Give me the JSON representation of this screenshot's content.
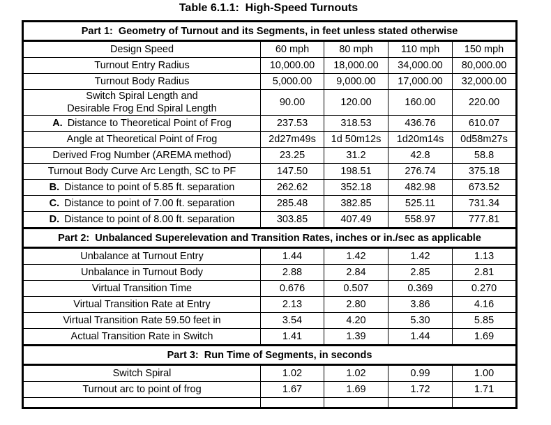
{
  "title": "Table 6.1.1:  High-Speed Turnouts",
  "table": {
    "parts": [
      {
        "header": "Part 1:  Geometry of Turnout and its Segments, in feet unless stated otherwise",
        "rows": [
          {
            "prefix": "",
            "label": "Design Speed",
            "values": [
              "60 mph",
              "80 mph",
              "110 mph",
              "150 mph"
            ]
          },
          {
            "prefix": "",
            "label": "Turnout Entry Radius",
            "values": [
              "10,000.00",
              "18,000.00",
              "34,000.00",
              "80,000.00"
            ]
          },
          {
            "prefix": "",
            "label": "Turnout Body Radius",
            "values": [
              "5,000.00",
              "9,000.00",
              "17,000.00",
              "32,000.00"
            ]
          },
          {
            "prefix": "",
            "label": "Switch Spiral Length and\nDesirable Frog End Spiral Length",
            "values": [
              "90.00",
              "120.00",
              "160.00",
              "220.00"
            ]
          },
          {
            "prefix": "A.",
            "label": "Distance to Theoretical Point of Frog",
            "values": [
              "237.53",
              "318.53",
              "436.76",
              "610.07"
            ]
          },
          {
            "prefix": "",
            "label": "Angle at Theoretical Point of Frog",
            "values": [
              "2d27m49s",
              "1d 50m12s",
              "1d20m14s",
              "0d58m27s"
            ]
          },
          {
            "prefix": "",
            "label": "Derived Frog Number (AREMA method)",
            "values": [
              "23.25",
              "31.2",
              "42.8",
              "58.8"
            ]
          },
          {
            "prefix": "",
            "label": "Turnout Body Curve Arc Length, SC to PF",
            "values": [
              "147.50",
              "198.51",
              "276.74",
              "375.18"
            ]
          },
          {
            "prefix": "B.",
            "label": "Distance to point of 5.85 ft. separation",
            "values": [
              "262.62",
              "352.18",
              "482.98",
              "673.52"
            ]
          },
          {
            "prefix": "C.",
            "label": "Distance to point of 7.00 ft. separation",
            "values": [
              "285.48",
              "382.85",
              "525.11",
              "731.34"
            ]
          },
          {
            "prefix": "D.",
            "label": "Distance to point of 8.00 ft. separation",
            "values": [
              "303.85",
              "407.49",
              "558.97",
              "777.81"
            ]
          }
        ]
      },
      {
        "header": "Part 2:  Unbalanced Superelevation and Transition Rates, inches or in./sec as applicable",
        "rows": [
          {
            "prefix": "",
            "label": "Unbalance at Turnout Entry",
            "values": [
              "1.44",
              "1.42",
              "1.42",
              "1.13"
            ]
          },
          {
            "prefix": "",
            "label": "Unbalance in Turnout Body",
            "values": [
              "2.88",
              "2.84",
              "2.85",
              "2.81"
            ]
          },
          {
            "prefix": "",
            "label": "Virtual Transition Time",
            "values": [
              "0.676",
              "0.507",
              "0.369",
              "0.270"
            ]
          },
          {
            "prefix": "",
            "label": "Virtual Transition Rate at Entry",
            "values": [
              "2.13",
              "2.80",
              "3.86",
              "4.16"
            ]
          },
          {
            "prefix": "",
            "label": "Virtual Transition Rate 59.50 feet in",
            "values": [
              "3.54",
              "4.20",
              "5.30",
              "5.85"
            ]
          },
          {
            "prefix": "",
            "label": "Actual Transition Rate in Switch",
            "values": [
              "1.41",
              "1.39",
              "1.44",
              "1.69"
            ]
          }
        ]
      },
      {
        "header": "Part 3:  Run Time of Segments, in seconds",
        "rows": [
          {
            "prefix": "",
            "label": "Switch Spiral",
            "values": [
              "1.02",
              "1.02",
              "0.99",
              "1.00"
            ]
          },
          {
            "prefix": "",
            "label": "Turnout arc to point of frog",
            "values": [
              "1.67",
              "1.69",
              "1.72",
              "1.71"
            ]
          },
          {
            "prefix": "",
            "label": "",
            "values": [
              "",
              "",
              "",
              ""
            ]
          }
        ]
      }
    ]
  }
}
